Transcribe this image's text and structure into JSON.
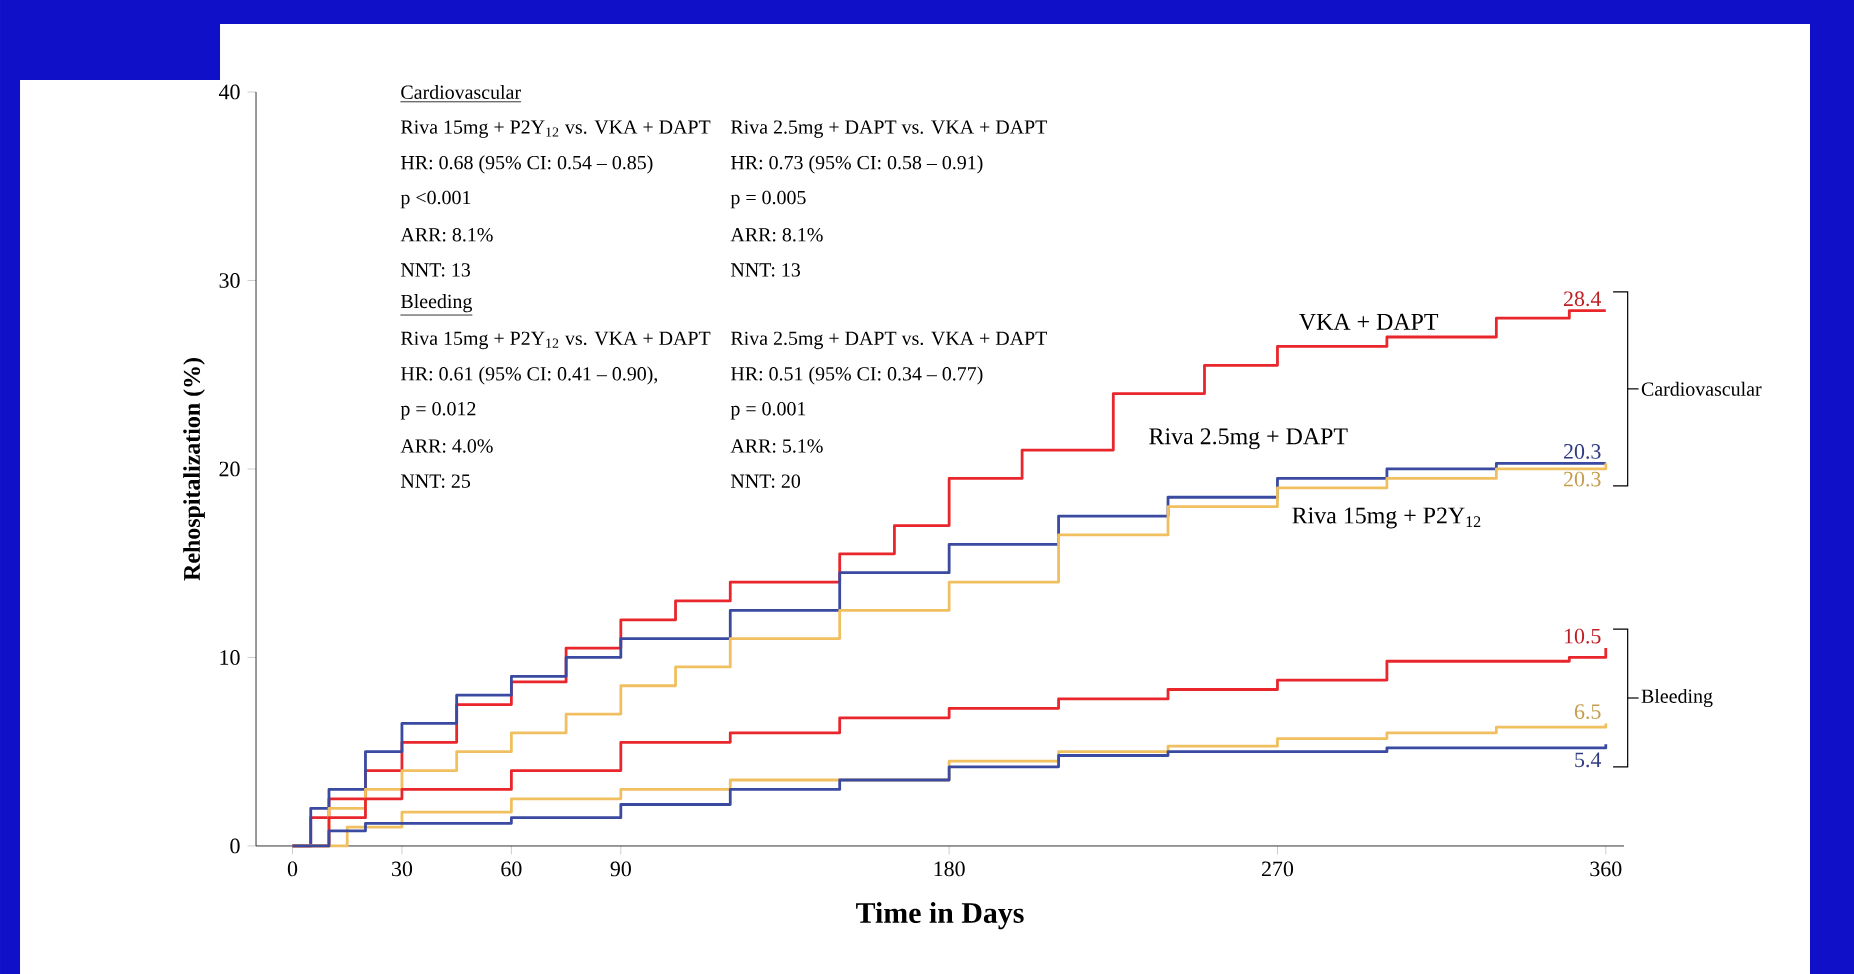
{
  "chart_data": {
    "type": "step",
    "xlabel": "Time in Days",
    "ylabel": "Rehospitalization (%)",
    "xlim": [
      -10,
      365
    ],
    "ylim": [
      0,
      40
    ],
    "xticks": [
      0,
      30,
      60,
      90,
      180,
      270,
      360
    ],
    "yticks": [
      0,
      10,
      20,
      30,
      40
    ],
    "grid": false,
    "marker": "none",
    "line_style": "solid",
    "series": [
      {
        "name": "VKA + DAPT",
        "color": "#e8262c",
        "x": [
          0,
          5,
          10,
          20,
          30,
          45,
          60,
          75,
          90,
          105,
          120,
          150,
          165,
          180,
          200,
          225,
          250,
          270,
          300,
          330,
          350,
          360
        ],
        "values": [
          0,
          1.5,
          2.5,
          4,
          5.5,
          7.5,
          8.7,
          10.5,
          12,
          13,
          14,
          15.5,
          17,
          19.5,
          21,
          24,
          25.5,
          26.5,
          27,
          28,
          28.4,
          28.4
        ],
        "value_labels": [
          null,
          null,
          null,
          null,
          null,
          null,
          null,
          null,
          null,
          null,
          null,
          null,
          null,
          null,
          null,
          null,
          null,
          null,
          null,
          null,
          null,
          "28.4"
        ]
      },
      {
        "name": "Riva 2.5mg + DAPT",
        "color": "#3a4aa0",
        "x": [
          0,
          5,
          10,
          20,
          30,
          45,
          60,
          75,
          90,
          120,
          150,
          180,
          210,
          240,
          270,
          300,
          330,
          360
        ],
        "values": [
          0,
          2,
          3,
          5,
          6.5,
          8,
          9,
          10,
          11,
          12.5,
          14.5,
          16,
          17.5,
          18.5,
          19.5,
          20,
          20.3,
          20.3
        ],
        "value_labels": [
          null,
          null,
          null,
          null,
          null,
          null,
          null,
          null,
          null,
          null,
          null,
          null,
          null,
          null,
          null,
          null,
          null,
          "20.3"
        ]
      },
      {
        "name": "Riva 15mg + P2Y$_{12}$",
        "color": "#f0c060",
        "x": [
          0,
          10,
          20,
          30,
          45,
          60,
          75,
          90,
          105,
          120,
          150,
          180,
          210,
          240,
          270,
          300,
          330,
          360
        ],
        "values": [
          0,
          2,
          3,
          4,
          5,
          6,
          7,
          8.5,
          9.5,
          11,
          12.5,
          14,
          16.5,
          18,
          19,
          19.5,
          20,
          20.3
        ],
        "value_labels": [
          null,
          null,
          null,
          null,
          null,
          null,
          null,
          null,
          null,
          null,
          null,
          null,
          null,
          null,
          null,
          null,
          null,
          "20.3"
        ]
      },
      {
        "color": "#e8262c",
        "x": [
          0,
          10,
          20,
          30,
          60,
          90,
          120,
          150,
          180,
          210,
          240,
          270,
          300,
          350,
          360
        ],
        "values": [
          0,
          1.5,
          2.5,
          3,
          4,
          5.5,
          6,
          6.8,
          7.3,
          7.8,
          8.3,
          8.8,
          9.8,
          10,
          10.5
        ],
        "value_labels": [
          null,
          null,
          null,
          null,
          null,
          null,
          null,
          null,
          null,
          null,
          null,
          null,
          null,
          null,
          "10.5"
        ]
      },
      {
        "color": "#f0c060",
        "x": [
          0,
          15,
          30,
          60,
          90,
          120,
          180,
          210,
          240,
          270,
          300,
          330,
          360
        ],
        "values": [
          0,
          1,
          1.8,
          2.5,
          3,
          3.5,
          4.5,
          5,
          5.3,
          5.7,
          6,
          6.3,
          6.5
        ],
        "value_labels": [
          null,
          null,
          null,
          null,
          null,
          null,
          null,
          null,
          null,
          null,
          null,
          null,
          "6.5"
        ]
      },
      {
        "color": "#3a4aa0",
        "x": [
          0,
          10,
          20,
          60,
          90,
          120,
          150,
          180,
          210,
          240,
          300,
          360
        ],
        "values": [
          0,
          0.8,
          1.2,
          1.5,
          2.2,
          3,
          3.5,
          4.2,
          4.8,
          5,
          5.2,
          5.4
        ],
        "value_labels": [
          null,
          null,
          null,
          null,
          null,
          null,
          null,
          null,
          null,
          null,
          null,
          "5.4"
        ]
      }
    ],
    "annotations": [
      "Cardiovascular",
      "Riva 15mg + P2Y$_{12}$ vs. VKA + DAPT",
      "HR: 0.68 (95% CI: 0.54 – 0.85)",
      "p <0.001",
      "ARR: 8.1%",
      "NNT: 13",
      "Riva 2.5mg + DAPT vs. VKA + DAPT",
      "HR: 0.73 (95% CI: 0.58 – 0.91)",
      "p = 0.005",
      "ARR: 8.1%",
      "NNT: 13",
      "Bleeding",
      "Riva 15mg + P2Y$_{12}$ vs. VKA + DAPT",
      "HR: 0.61 (95% CI: 0.41 – 0.90),",
      "p = 0.012",
      "ARR: 4.0%",
      "NNT: 25",
      "Riva 2.5mg + DAPT vs. VKA + DAPT",
      "HR: 0.51 (95% CI: 0.34 – 0.77)",
      "p = 0.001",
      "ARR: 5.1%",
      "NNT: 20",
      "Cardiovascular",
      "Bleeding"
    ]
  }
}
